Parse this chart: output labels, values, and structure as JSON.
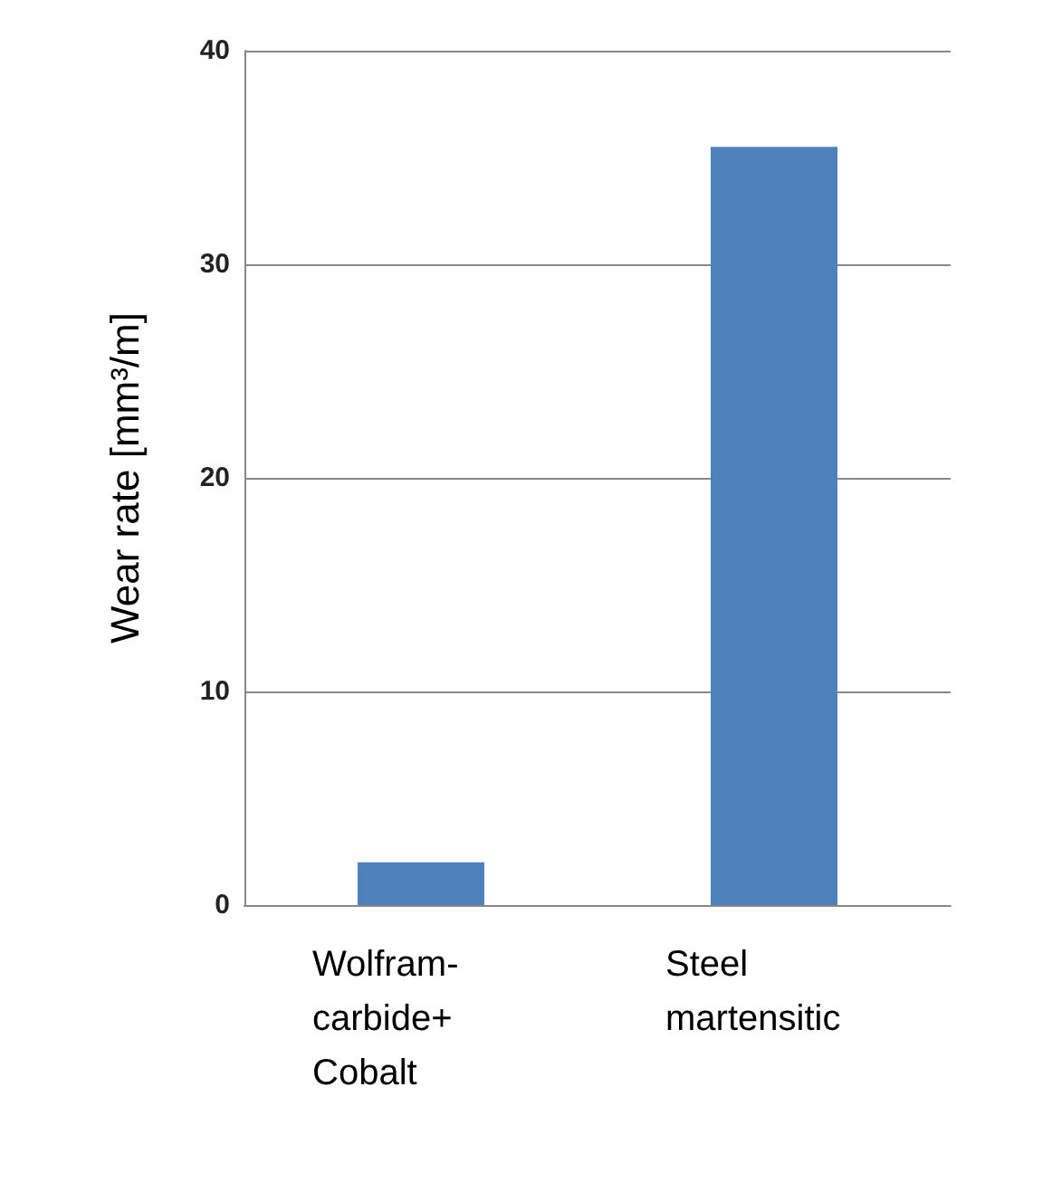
{
  "chart_data": {
    "type": "bar",
    "ylabel": "Wear rate [mm³/m]",
    "categories": [
      "Wolfram-\ncarbide+\nCobalt",
      "Steel\nmartensitic"
    ],
    "values": [
      2,
      35.5
    ],
    "color": "#4f81bd",
    "ylim": [
      0,
      40
    ],
    "yticks": [
      0,
      10,
      20,
      30,
      40
    ],
    "grid": "y"
  }
}
